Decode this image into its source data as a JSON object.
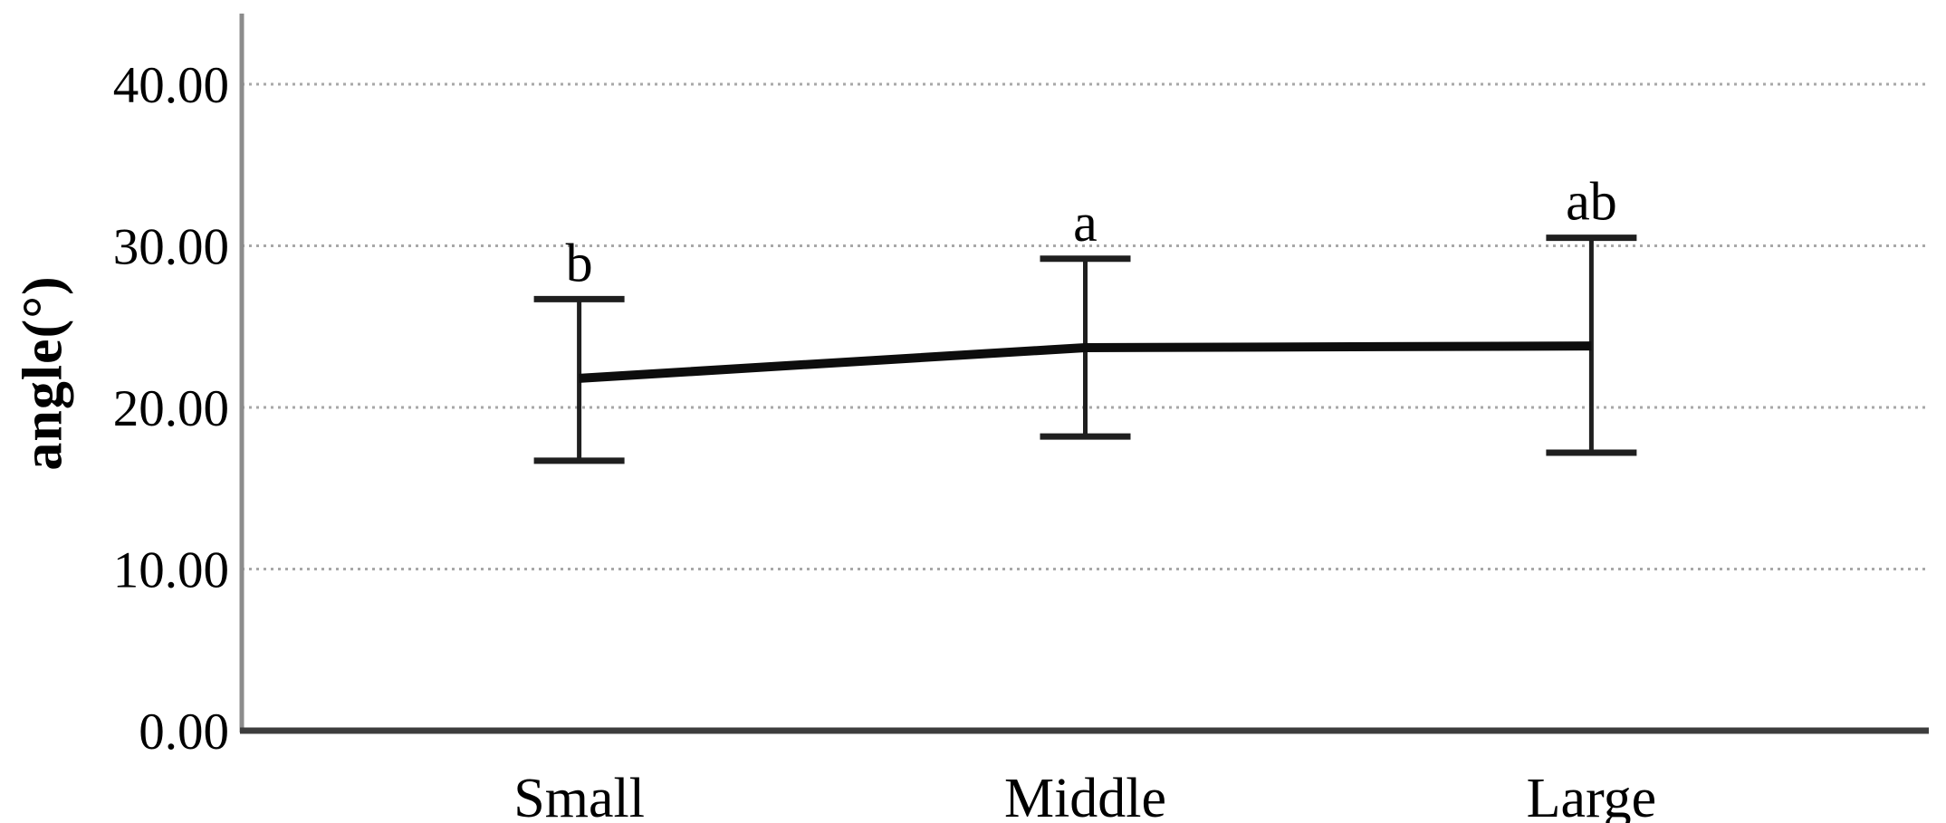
{
  "figure": {
    "background": "#ffffff"
  },
  "chart_data": {
    "type": "line",
    "title": "",
    "xlabel": "",
    "ylabel": "angle(°)",
    "categories": [
      "Small",
      "Middle",
      "Large"
    ],
    "series": [
      {
        "name": "angle",
        "values": [
          21.8,
          23.7,
          23.8
        ],
        "error_upper": [
          26.7,
          29.2,
          30.5
        ],
        "error_lower": [
          16.7,
          18.2,
          17.2
        ],
        "significance_letters": [
          "b",
          "a",
          "ab"
        ]
      }
    ],
    "ylim": [
      0,
      40
    ],
    "yticks": [
      0,
      10,
      20,
      30,
      40
    ],
    "ytick_labels": [
      "0.00",
      "10.00",
      "20.00",
      "30.00",
      "40.00"
    ],
    "grid": "horizontal-dotted",
    "legend_position": "none",
    "colors": {
      "line": "#0d0d0d",
      "error_bar": "#1f1f1f",
      "gridline": "#a8a8a8",
      "x_axis": "#3d3d3d",
      "y_axis": "#8c8c8c",
      "text": "#000000"
    }
  }
}
